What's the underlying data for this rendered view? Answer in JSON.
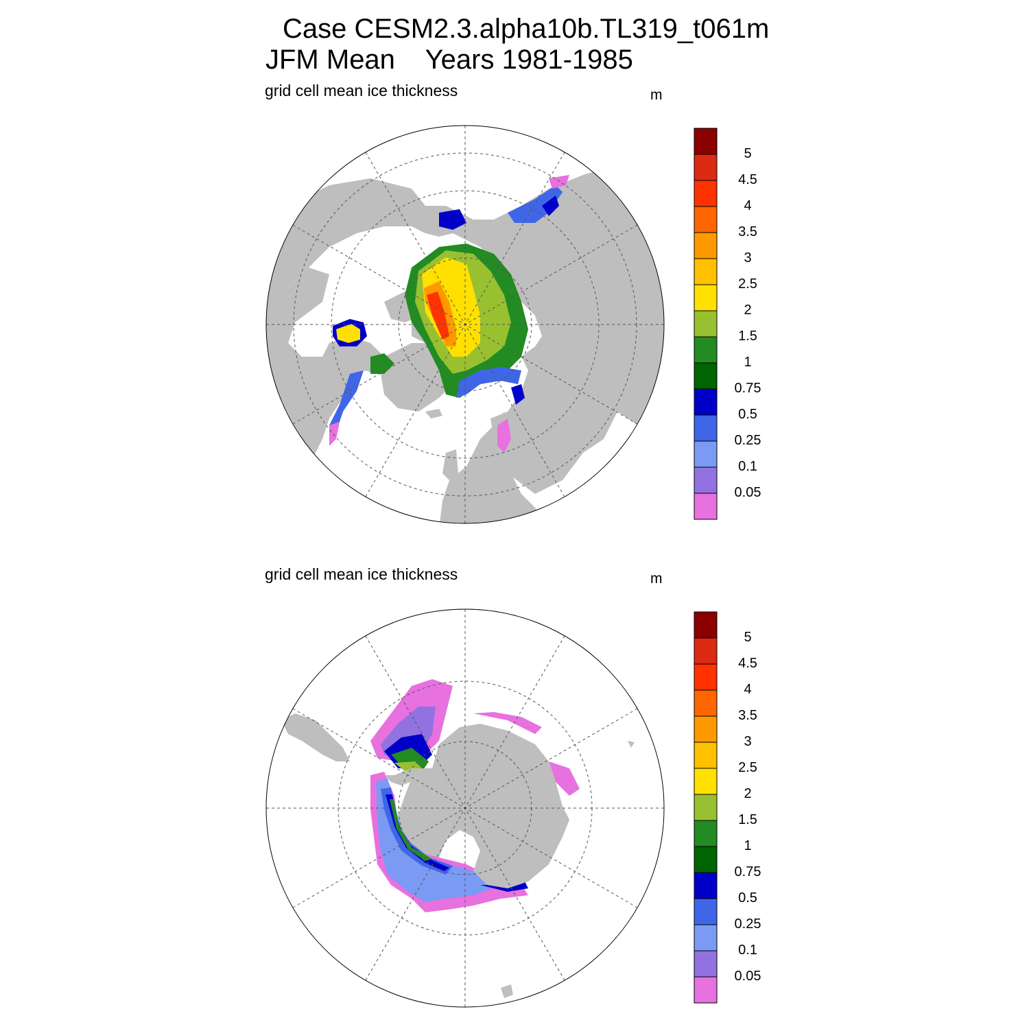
{
  "title": {
    "line1": "Case CESM2.3.alpha10b.TL319_t061m",
    "line2": "JFM Mean    Years 1981-1985"
  },
  "colors": {
    "land": "#bebebe",
    "ocean": "#ffffff",
    "grid": "#555555",
    "levels": [
      "#e771de",
      "#9272e0",
      "#7a9af4",
      "#4066e8",
      "#0000c8",
      "#006400",
      "#228b22",
      "#99c031",
      "#ffe000",
      "#ffc000",
      "#ff9900",
      "#ff6600",
      "#ff3300",
      "#dd2a12",
      "#8b0000"
    ]
  },
  "legend": {
    "labels": [
      "0.05",
      "0.1",
      "0.25",
      "0.5",
      "0.75",
      "1",
      "1.5",
      "2",
      "2.5",
      "3",
      "3.5",
      "4",
      "4.5",
      "5"
    ]
  },
  "panels": [
    {
      "id": "north",
      "label": "grid cell mean ice thickness",
      "units": "m",
      "hemisphere": "Arctic"
    },
    {
      "id": "south",
      "label": "grid cell mean ice thickness",
      "units": "m",
      "hemisphere": "Antarctic"
    }
  ]
}
